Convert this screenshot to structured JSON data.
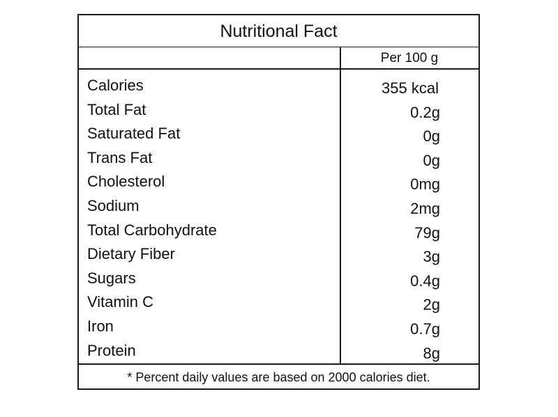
{
  "title": "Nutritional Fact",
  "column_header": "Per 100 g",
  "nutrients": [
    {
      "name": "Calories",
      "amount": "355 kcal"
    },
    {
      "name": "Total Fat",
      "amount": "0.2g"
    },
    {
      "name": "Saturated Fat",
      "amount": "0g"
    },
    {
      "name": "Trans Fat",
      "amount": "0g"
    },
    {
      "name": "Cholesterol",
      "amount": "0mg"
    },
    {
      "name": "Sodium",
      "amount": "2mg"
    },
    {
      "name": "Total Carbohydrate",
      "amount": "79g"
    },
    {
      "name": "Dietary Fiber",
      "amount": "3g"
    },
    {
      "name": "Sugars",
      "amount": "0.4g"
    },
    {
      "name": "Vitamin C",
      "amount": "2g"
    },
    {
      "name": "Iron",
      "amount": "0.7g"
    },
    {
      "name": "Protein",
      "amount": "8g"
    }
  ],
  "footnote": "* Percent daily values are based on 2000 calories diet."
}
